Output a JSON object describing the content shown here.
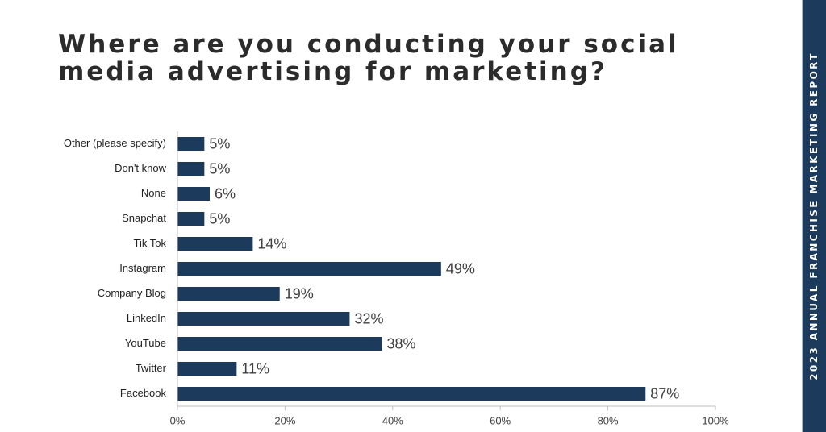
{
  "title": "Where are you conducting your social media advertising for marketing?",
  "side_banner": "2023 ANNUAL FRANCHISE MARKETING REPORT",
  "colors": {
    "bar": "#1b3a5c",
    "band": "#1b3a5c",
    "axis": "#bfbfbf"
  },
  "chart_data": {
    "type": "bar",
    "orientation": "horizontal",
    "categories": [
      "Other (please specify)",
      "Don't know",
      "None",
      "Snapchat",
      "Tik Tok",
      "Instagram",
      "Company Blog",
      "LinkedIn",
      "YouTube",
      "Twitter",
      "Facebook"
    ],
    "values": [
      5,
      5,
      6,
      5,
      14,
      49,
      19,
      32,
      38,
      11,
      87
    ],
    "value_labels": [
      "5%",
      "5%",
      "6%",
      "5%",
      "14%",
      "49%",
      "19%",
      "32%",
      "38%",
      "11%",
      "87%"
    ],
    "xlim": [
      0,
      100
    ],
    "xticks": [
      0,
      20,
      40,
      60,
      80,
      100
    ],
    "xtick_labels": [
      "0%",
      "20%",
      "40%",
      "60%",
      "80%",
      "100%"
    ],
    "grid": false,
    "legend": "none"
  }
}
